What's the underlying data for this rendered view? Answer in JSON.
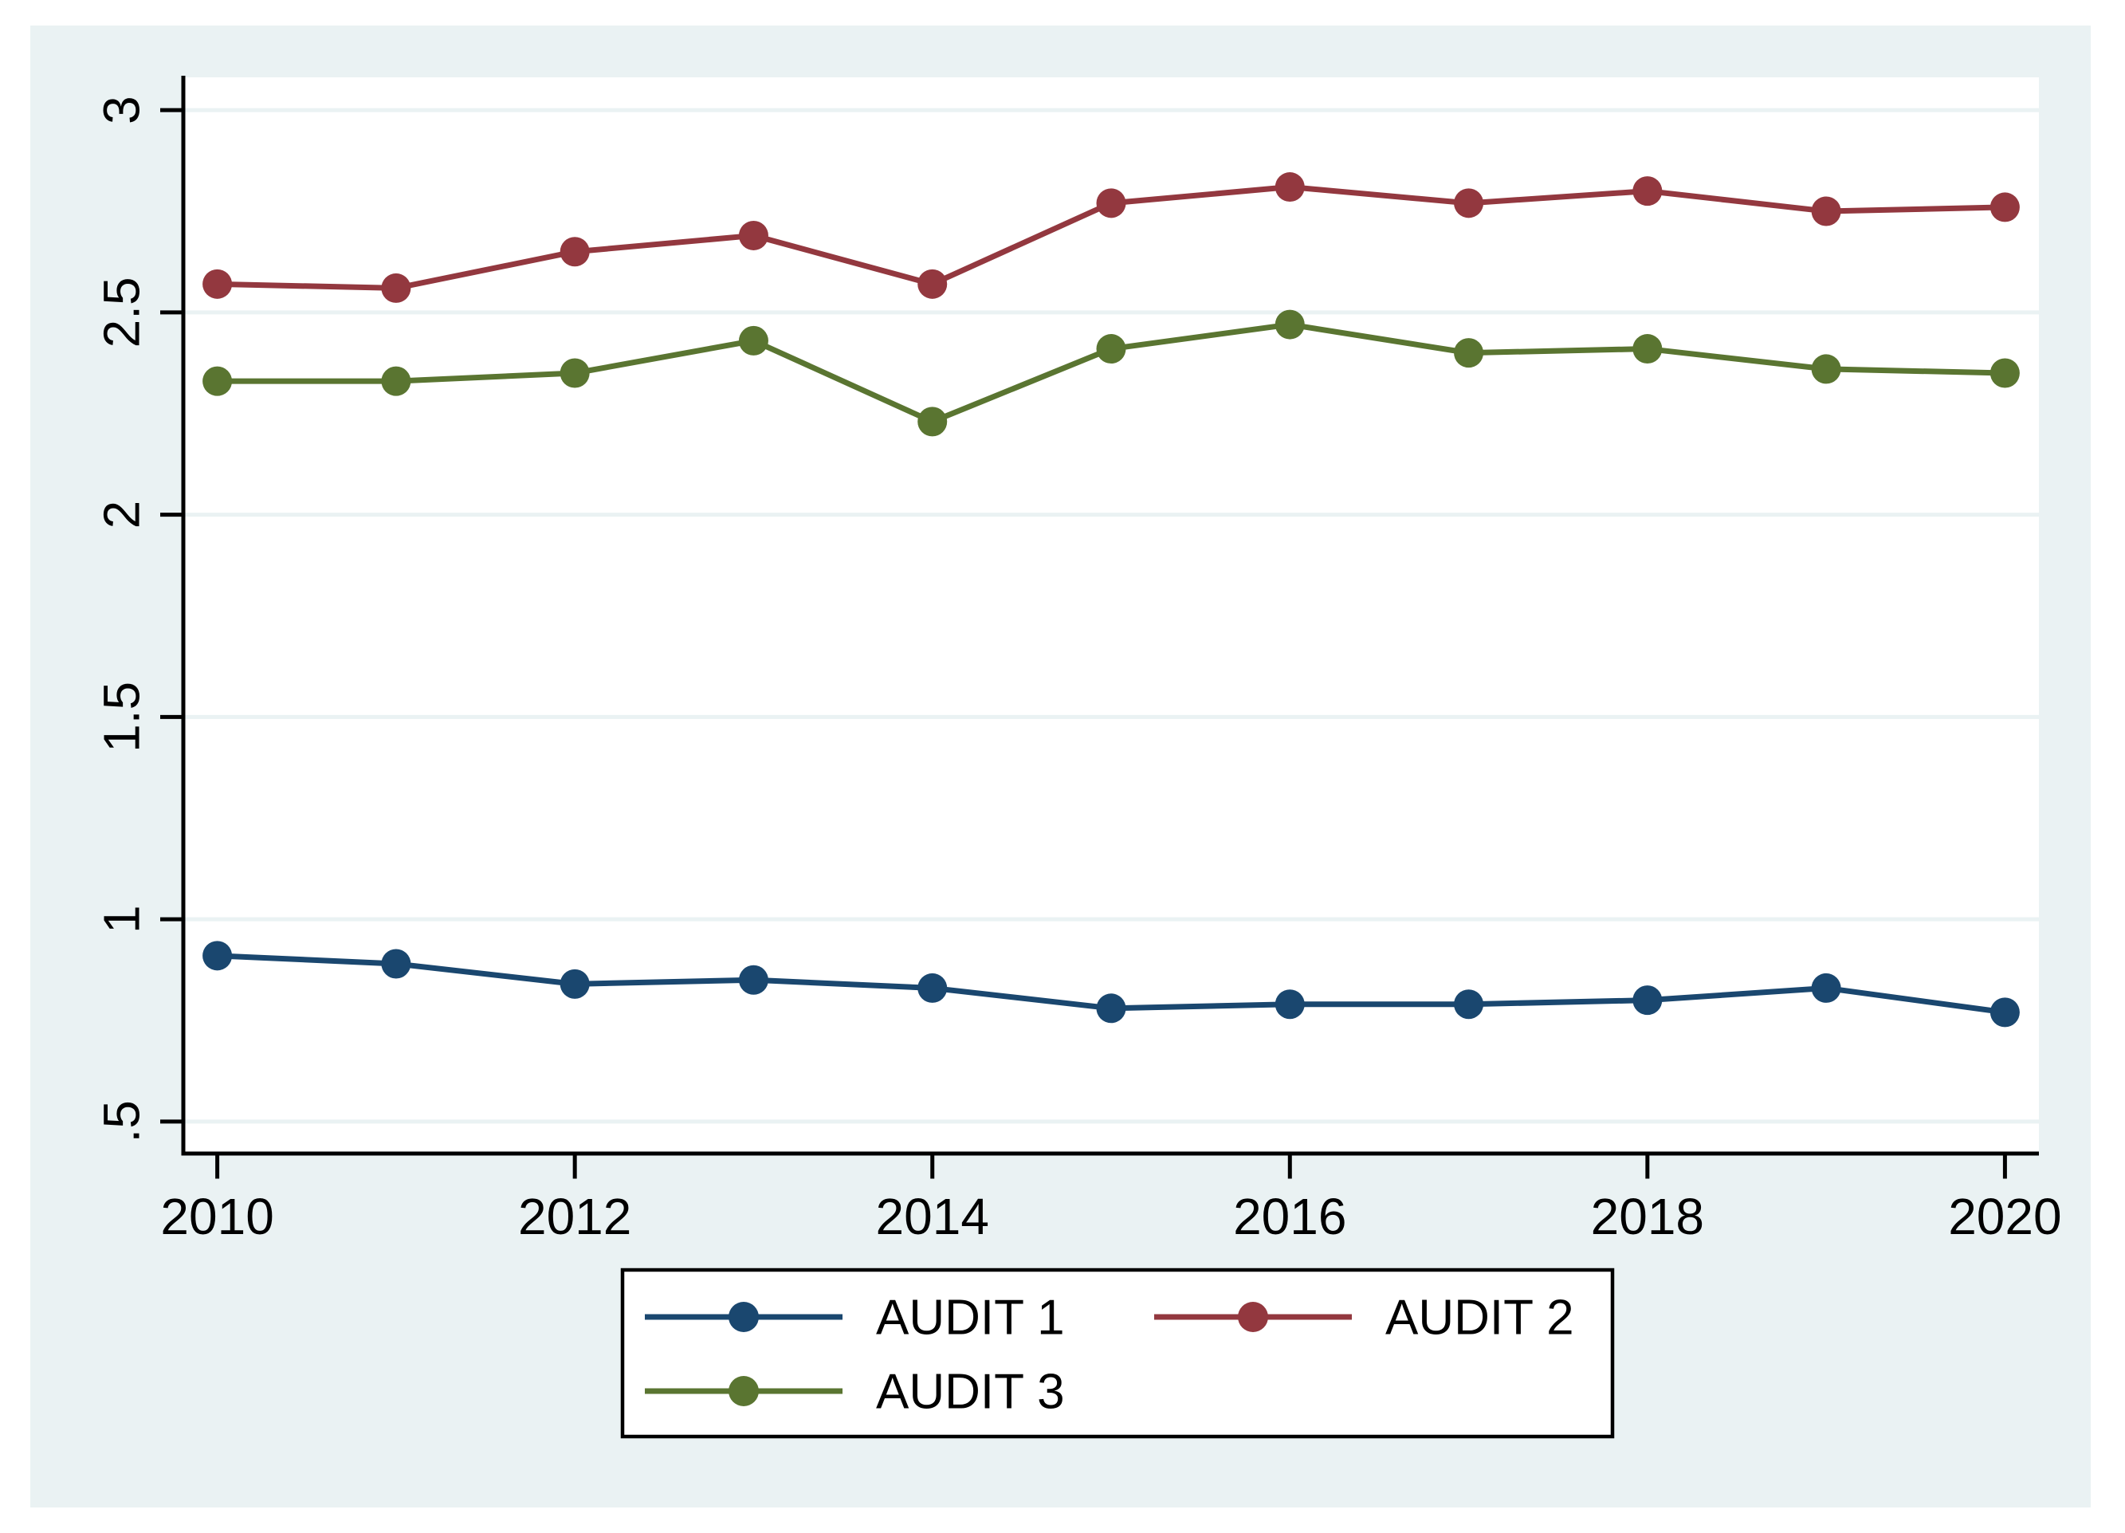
{
  "chart_data": {
    "type": "line",
    "title": "",
    "xlabel": "",
    "ylabel": "",
    "x": [
      2010,
      2011,
      2012,
      2013,
      2014,
      2015,
      2016,
      2017,
      2018,
      2019,
      2020
    ],
    "series": [
      {
        "name": "AUDIT 1",
        "color": "#1a476f",
        "values": [
          0.91,
          0.89,
          0.84,
          0.85,
          0.83,
          0.78,
          0.79,
          0.79,
          0.8,
          0.83,
          0.77
        ]
      },
      {
        "name": "AUDIT 2",
        "color": "#93383f",
        "values": [
          2.57,
          2.56,
          2.65,
          2.69,
          2.57,
          2.77,
          2.81,
          2.77,
          2.8,
          2.75,
          2.76
        ]
      },
      {
        "name": "AUDIT 3",
        "color": "#5a7531",
        "values": [
          2.33,
          2.33,
          2.35,
          2.43,
          2.23,
          2.41,
          2.47,
          2.4,
          2.41,
          2.36,
          2.35
        ]
      }
    ],
    "x_ticks": {
      "values": [
        2010,
        2012,
        2014,
        2016,
        2018,
        2020
      ],
      "labels": [
        "2010",
        "2012",
        "2014",
        "2016",
        "2018",
        "2020"
      ]
    },
    "y_ticks": {
      "values": [
        0.5,
        1,
        1.5,
        2,
        2.5,
        3
      ],
      "labels": [
        ".5",
        "1",
        "1.5",
        "2",
        "2.5",
        "3"
      ]
    },
    "x_range": [
      2009.81,
      2020.19
    ],
    "y_range": [
      0.421,
      3.081
    ],
    "grid": "horizontal",
    "legend": {
      "position": "bottom-center",
      "rows": [
        [
          "AUDIT 1",
          "AUDIT 2"
        ],
        [
          "AUDIT 3"
        ]
      ],
      "entries": [
        "AUDIT 1",
        "AUDIT 2",
        "AUDIT 3"
      ]
    }
  },
  "colors": {
    "page_background": "#ffffff",
    "graph_background": "#eaf2f3",
    "plot_background": "#ffffff",
    "gridline": "#eaf2f3",
    "axis": "#000000",
    "tick_text": "#000000",
    "legend_background": "#ffffff",
    "legend_border": "#000000"
  }
}
